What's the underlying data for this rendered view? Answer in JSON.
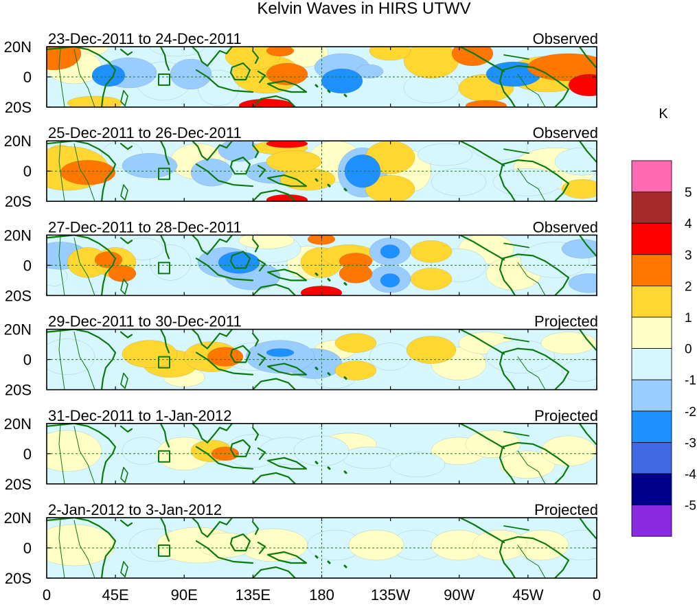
{
  "title": "Kelvin Waves in HIRS UTWV",
  "units": "K",
  "colors": {
    "bins": [
      "#8a2be2",
      "#00008b",
      "#4169e1",
      "#1e90ff",
      "#99ccff",
      "#d7f7ff",
      "#ffffc6",
      "#ffd730",
      "#ff7700",
      "#ff0000",
      "#a52a2a",
      "#ff69b4"
    ],
    "coast": "#0a7a0a",
    "equator": "#1a7a1a"
  },
  "colorbar": {
    "labels": [
      "-5",
      "-4",
      "-3",
      "-2",
      "-1",
      "0",
      "1",
      "2",
      "3",
      "4",
      "5"
    ]
  },
  "lat_ticks": [
    "20N",
    "0",
    "20S"
  ],
  "lon_ticks": [
    "0",
    "45E",
    "90E",
    "135E",
    "180",
    "135W",
    "90W",
    "45W",
    "0"
  ],
  "panels": [
    {
      "date_range": "23-Dec-2011 to 24-Dec-2011",
      "status": "Observed"
    },
    {
      "date_range": "25-Dec-2011 to 26-Dec-2011",
      "status": "Observed"
    },
    {
      "date_range": "27-Dec-2011 to 28-Dec-2011",
      "status": "Observed"
    },
    {
      "date_range": "29-Dec-2011 to 30-Dec-2011",
      "status": "Projected"
    },
    {
      "date_range": "31-Dec-2011 to 1-Jan-2012",
      "status": "Projected"
    },
    {
      "date_range": "2-Jan-2012 to 3-Jan-2012",
      "status": "Projected"
    }
  ]
}
